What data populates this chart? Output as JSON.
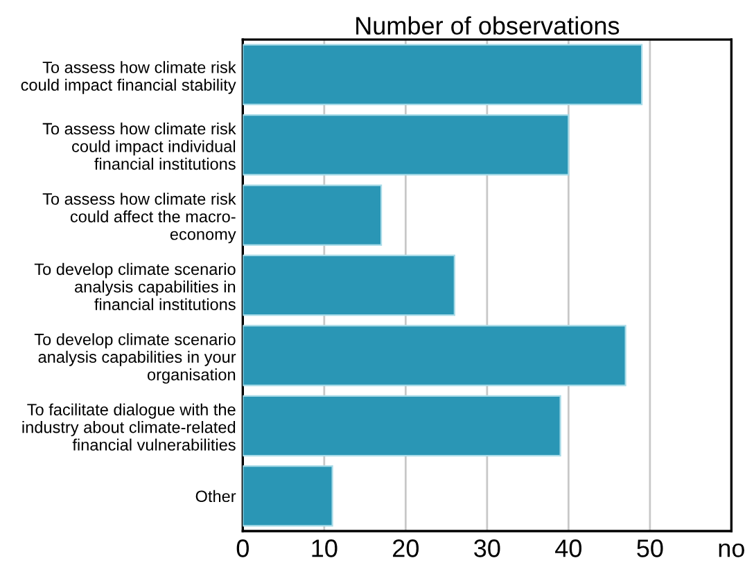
{
  "chart_data": {
    "type": "bar",
    "orientation": "horizontal",
    "title": "Number of observations",
    "categories": [
      "To assess how climate risk\ncould impact financial stability",
      "To assess how climate risk\ncould impact individual\nfinancial institutions",
      "To assess how climate risk\ncould affect the macro-\neconomy",
      "To develop climate scenario\nanalysis capabilities in\nfinancial institutions",
      "To develop climate scenario\nanalysis capabilities in your\norganisation",
      "To facilitate dialogue with the\nindustry about climate-related\nfinancial vulnerabilities",
      "Other"
    ],
    "values": [
      49,
      40,
      17,
      26,
      47,
      39,
      11
    ],
    "color": "#2a96b5",
    "xlim": [
      0,
      60
    ],
    "xticks": [
      0,
      10,
      20,
      30,
      40,
      50,
      {
        "value": 60,
        "label": "no"
      }
    ],
    "grid": "x"
  }
}
